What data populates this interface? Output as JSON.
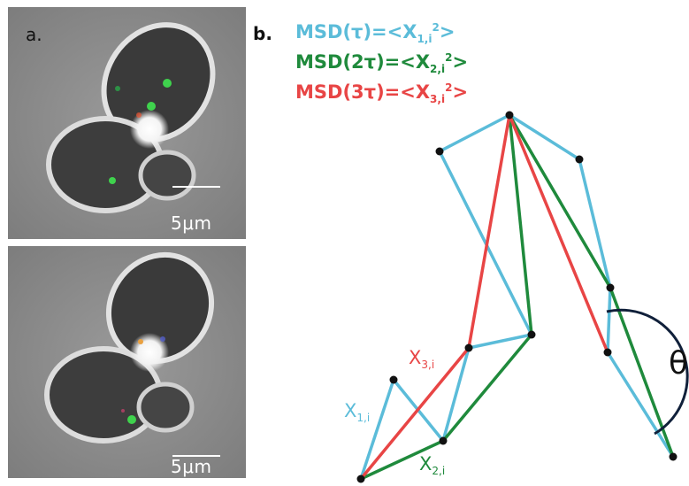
{
  "panel_a": {
    "label": "a.",
    "scale_top": "5μm",
    "scale_bottom": "5μm"
  },
  "panel_b": {
    "label": "b.",
    "legend": [
      {
        "prefix": "MSD(τ)=<X",
        "sub": "1,i",
        "sup": "2",
        "suffix": ">",
        "color": "#5bbcd9"
      },
      {
        "prefix": "MSD(2τ)=<X",
        "sub": "2,i",
        "sup": "2",
        "suffix": ">",
        "color": "#1f8a3c"
      },
      {
        "prefix": "MSD(3τ)=<X",
        "sub": "3,i",
        "sup": "2",
        "suffix": ">",
        "color": "#e84545"
      }
    ],
    "segment_labels": {
      "x1": {
        "base": "X",
        "sub": "1,i"
      },
      "x2": {
        "base": "X",
        "sub": "2,i"
      },
      "x3": {
        "base": "X",
        "sub": "3,i"
      }
    },
    "angle_label": "θ",
    "colors": {
      "cyan": "#5bbcd9",
      "green": "#1f8a3c",
      "red": "#e84545",
      "arc": "#10203a",
      "point": "#111111"
    }
  }
}
